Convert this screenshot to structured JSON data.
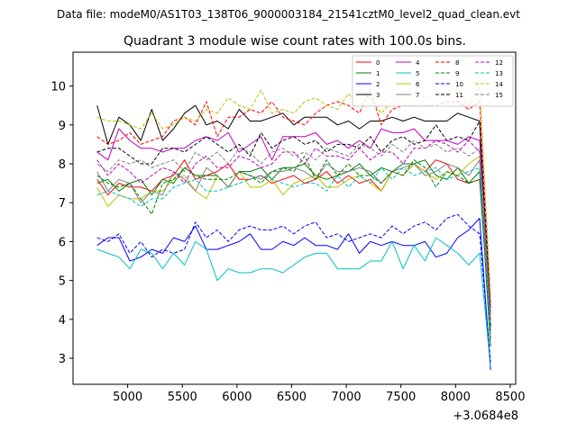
{
  "chart_data": {
    "type": "line",
    "suptitle": "Data file: modeM0/AS1T03_138T06_9000003184_21541cztM0_level2_quad_clean.evt",
    "title": "Quadrant 3 module wise count rates with 100.0s bins.",
    "xlabel": "",
    "ylabel": "",
    "x_offset_label": "+3.0684e8",
    "xlim": [
      4500,
      8550
    ],
    "ylim": [
      2.33,
      10.87
    ],
    "xticks": [
      5000,
      5500,
      6000,
      6500,
      7000,
      7500,
      8000,
      8500
    ],
    "yticks": [
      3,
      4,
      5,
      6,
      7,
      8,
      9,
      10
    ],
    "xtick_labels": [
      "5000",
      "5500",
      "6000",
      "6500",
      "7000",
      "7500",
      "8000",
      "8500"
    ],
    "ytick_labels": [
      "3",
      "4",
      "5",
      "6",
      "7",
      "8",
      "9",
      "10"
    ],
    "x": [
      4720,
      4820,
      4920,
      5020,
      5120,
      5220,
      5320,
      5420,
      5520,
      5620,
      5720,
      5820,
      5920,
      6020,
      6120,
      6220,
      6320,
      6420,
      6520,
      6620,
      6720,
      6820,
      6920,
      7020,
      7120,
      7220,
      7320,
      7420,
      7520,
      7620,
      7720,
      7820,
      7920,
      8020,
      8120,
      8220,
      8320
    ],
    "legend": {
      "placement": "top-right",
      "ncol": 4
    },
    "series": [
      {
        "name": "0",
        "color": "#ff0000",
        "dash": "solid",
        "values": [
          7.6,
          7.2,
          7.5,
          7.4,
          7.4,
          7.3,
          7.6,
          7.7,
          8.1,
          7.6,
          7.7,
          7.8,
          8.0,
          7.6,
          7.6,
          7.7,
          7.5,
          7.6,
          7.7,
          7.5,
          7.6,
          7.8,
          7.5,
          7.7,
          7.5,
          7.6,
          7.3,
          7.8,
          7.7,
          8.0,
          7.8,
          8.1,
          8.0,
          7.6,
          7.5,
          7.6,
          3.7
        ]
      },
      {
        "name": "1",
        "color": "#008000",
        "dash": "solid",
        "values": [
          7.5,
          7.6,
          7.3,
          7.5,
          7.6,
          7.2,
          7.6,
          7.5,
          7.9,
          7.7,
          7.7,
          7.7,
          7.4,
          7.8,
          7.8,
          7.9,
          7.6,
          7.9,
          7.9,
          8.0,
          7.7,
          7.6,
          7.7,
          7.8,
          8.0,
          7.7,
          7.9,
          7.8,
          8.0,
          8.0,
          8.1,
          7.7,
          7.6,
          7.9,
          7.5,
          7.8,
          3.3
        ]
      },
      {
        "name": "2",
        "color": "#0000ff",
        "dash": "solid",
        "values": [
          5.9,
          6.1,
          6.1,
          5.5,
          5.6,
          5.8,
          5.7,
          6.1,
          6.0,
          6.4,
          5.8,
          5.8,
          5.9,
          6.0,
          6.2,
          5.8,
          5.8,
          6.0,
          5.9,
          6.1,
          5.9,
          5.9,
          5.8,
          6.2,
          5.7,
          6.0,
          5.9,
          6.0,
          5.9,
          5.9,
          6.0,
          5.6,
          5.7,
          6.1,
          6.3,
          6.6,
          2.7
        ]
      },
      {
        "name": "3",
        "color": "#000000",
        "dash": "solid",
        "values": [
          9.5,
          8.5,
          9.2,
          9.0,
          8.6,
          9.4,
          8.6,
          8.9,
          9.3,
          9.5,
          9.0,
          9.1,
          8.9,
          9.4,
          9.1,
          9.1,
          9.2,
          9.3,
          9.0,
          9.2,
          9.2,
          9.2,
          9.0,
          9.1,
          8.9,
          9.1,
          9.1,
          9.2,
          9.1,
          9.2,
          9.1,
          9.1,
          9.1,
          9.3,
          9.2,
          9.1,
          3.8
        ]
      },
      {
        "name": "4",
        "color": "#c000c0",
        "dash": "solid",
        "values": [
          8.3,
          8.1,
          8.9,
          8.6,
          8.4,
          8.4,
          8.3,
          8.4,
          8.4,
          8.6,
          8.7,
          8.6,
          8.8,
          8.3,
          8.5,
          8.7,
          8.1,
          8.7,
          8.7,
          8.7,
          8.8,
          8.5,
          8.6,
          8.4,
          8.6,
          8.4,
          8.9,
          8.8,
          8.8,
          8.9,
          8.6,
          8.6,
          8.6,
          8.5,
          8.7,
          8.6,
          4.3
        ]
      },
      {
        "name": "5",
        "color": "#00c0c0",
        "dash": "solid",
        "values": [
          5.8,
          5.7,
          5.6,
          5.3,
          5.8,
          5.7,
          5.3,
          5.7,
          5.4,
          6.0,
          5.8,
          5.0,
          5.3,
          5.2,
          5.2,
          5.3,
          5.3,
          5.2,
          5.4,
          5.6,
          5.7,
          5.7,
          5.3,
          5.3,
          5.3,
          5.5,
          5.5,
          6.0,
          5.3,
          5.9,
          5.5,
          6.1,
          5.9,
          5.7,
          5.4,
          5.7,
          2.8
        ]
      },
      {
        "name": "6",
        "color": "#c0c000",
        "dash": "solid",
        "values": [
          7.4,
          6.9,
          7.2,
          7.1,
          7.1,
          7.3,
          7.3,
          7.6,
          7.7,
          7.3,
          7.1,
          7.7,
          7.4,
          7.8,
          7.4,
          7.4,
          7.6,
          7.2,
          7.5,
          7.6,
          7.7,
          7.4,
          7.4,
          7.6,
          7.7,
          7.5,
          7.3,
          7.8,
          7.7,
          8.0,
          7.8,
          7.6,
          7.8,
          7.7,
          8.0,
          8.2,
          4.1
        ]
      },
      {
        "name": "7",
        "color": "#808080",
        "dash": "solid",
        "values": [
          7.8,
          7.3,
          7.6,
          7.5,
          7.0,
          7.3,
          7.2,
          7.8,
          7.6,
          7.3,
          7.9,
          7.7,
          7.4,
          7.8,
          7.7,
          7.6,
          7.8,
          7.8,
          7.9,
          7.8,
          7.6,
          8.0,
          7.8,
          7.8,
          7.9,
          7.8,
          7.5,
          7.8,
          7.9,
          8.0,
          7.7,
          7.8,
          8.0,
          7.9,
          7.7,
          8.1,
          3.9
        ]
      },
      {
        "name": "8",
        "color": "#ff0000",
        "dash": "dashed",
        "values": [
          8.7,
          8.5,
          8.6,
          8.8,
          8.5,
          8.6,
          8.7,
          9.1,
          9.2,
          9.0,
          9.6,
          8.7,
          9.2,
          9.2,
          9.4,
          9.3,
          9.6,
          9.2,
          9.1,
          9.0,
          9.3,
          9.5,
          9.6,
          9.5,
          9.3,
          9.9,
          9.0,
          9.4,
          9.5,
          9.5,
          9.5,
          9.5,
          9.6,
          9.6,
          9.4,
          9.6,
          4.4
        ]
      },
      {
        "name": "9",
        "color": "#008000",
        "dash": "dashed",
        "values": [
          7.7,
          7.5,
          7.4,
          7.5,
          7.1,
          6.7,
          7.5,
          7.6,
          7.9,
          7.7,
          7.6,
          7.6,
          7.6,
          7.8,
          7.7,
          7.5,
          7.8,
          7.9,
          7.8,
          8.2,
          7.6,
          8.1,
          7.7,
          8.0,
          7.7,
          7.7,
          7.5,
          7.8,
          7.7,
          8.1,
          7.9,
          7.4,
          7.8,
          7.7,
          7.5,
          7.6,
          3.5
        ]
      },
      {
        "name": "10",
        "color": "#0000ff",
        "dash": "dashed",
        "values": [
          6.1,
          6.0,
          6.2,
          5.7,
          6.0,
          5.6,
          5.8,
          5.7,
          5.8,
          6.5,
          6.1,
          6.3,
          6.0,
          6.3,
          6.4,
          6.3,
          6.3,
          6.4,
          6.2,
          6.4,
          6.5,
          6.1,
          6.2,
          6.0,
          6.1,
          6.2,
          6.1,
          6.4,
          6.2,
          6.4,
          6.5,
          6.3,
          6.6,
          6.7,
          6.4,
          6.2,
          2.9
        ]
      },
      {
        "name": "11",
        "color": "#000000",
        "dash": "dashed",
        "values": [
          8.3,
          8.4,
          8.4,
          8.2,
          8.0,
          8.0,
          8.4,
          8.4,
          8.3,
          8.5,
          8.7,
          8.5,
          8.3,
          8.5,
          8.2,
          8.8,
          8.4,
          8.6,
          8.7,
          8.5,
          8.6,
          8.3,
          8.5,
          8.5,
          8.4,
          8.7,
          8.3,
          8.6,
          8.7,
          8.5,
          8.6,
          9.0,
          8.6,
          8.7,
          8.6,
          9.1,
          4.2
        ]
      },
      {
        "name": "12",
        "color": "#c000c0",
        "dash": "dashed",
        "values": [
          8.1,
          7.7,
          8.0,
          7.8,
          7.5,
          7.7,
          7.9,
          7.8,
          7.5,
          8.0,
          8.2,
          7.9,
          7.9,
          8.2,
          8.1,
          7.9,
          8.0,
          8.3,
          8.3,
          8.0,
          8.4,
          8.2,
          8.2,
          8.1,
          8.4,
          8.1,
          8.3,
          8.3,
          8.0,
          8.4,
          8.4,
          8.6,
          8.5,
          8.3,
          8.6,
          8.3,
          4.0
        ]
      },
      {
        "name": "13",
        "color": "#00c0c0",
        "dash": "dashed",
        "values": [
          7.2,
          7.3,
          7.2,
          7.1,
          6.9,
          7.1,
          7.1,
          7.4,
          7.5,
          7.6,
          7.3,
          7.3,
          7.4,
          7.5,
          7.6,
          7.7,
          7.6,
          7.5,
          7.4,
          7.5,
          7.5,
          7.3,
          7.7,
          7.4,
          7.7,
          7.5,
          7.9,
          7.6,
          7.9,
          7.7,
          7.8,
          7.9,
          7.6,
          7.7,
          7.8,
          7.9,
          3.6
        ]
      },
      {
        "name": "14",
        "color": "#c0c000",
        "dash": "dashed",
        "values": [
          9.2,
          9.1,
          9.1,
          9.0,
          8.9,
          9.3,
          8.9,
          9.0,
          9.2,
          9.1,
          9.4,
          9.3,
          9.7,
          9.5,
          9.4,
          9.9,
          9.3,
          9.4,
          9.3,
          9.6,
          9.7,
          9.5,
          9.4,
          9.8,
          9.5,
          9.7,
          9.3,
          9.6,
          9.6,
          9.8,
          9.7,
          9.7,
          9.8,
          9.9,
          9.5,
          10.1,
          4.6
        ]
      },
      {
        "name": "15",
        "color": "#808080",
        "dash": "dashed",
        "values": [
          8.0,
          7.8,
          8.1,
          8.0,
          8.1,
          7.9,
          8.0,
          8.1,
          7.8,
          8.3,
          8.1,
          8.3,
          8.0,
          8.4,
          8.3,
          8.0,
          8.3,
          8.4,
          8.2,
          8.3,
          8.1,
          8.4,
          8.3,
          8.2,
          8.5,
          8.4,
          8.2,
          8.5,
          8.3,
          8.6,
          8.4,
          8.5,
          8.3,
          8.4,
          8.2,
          8.4,
          4.1
        ]
      }
    ]
  }
}
